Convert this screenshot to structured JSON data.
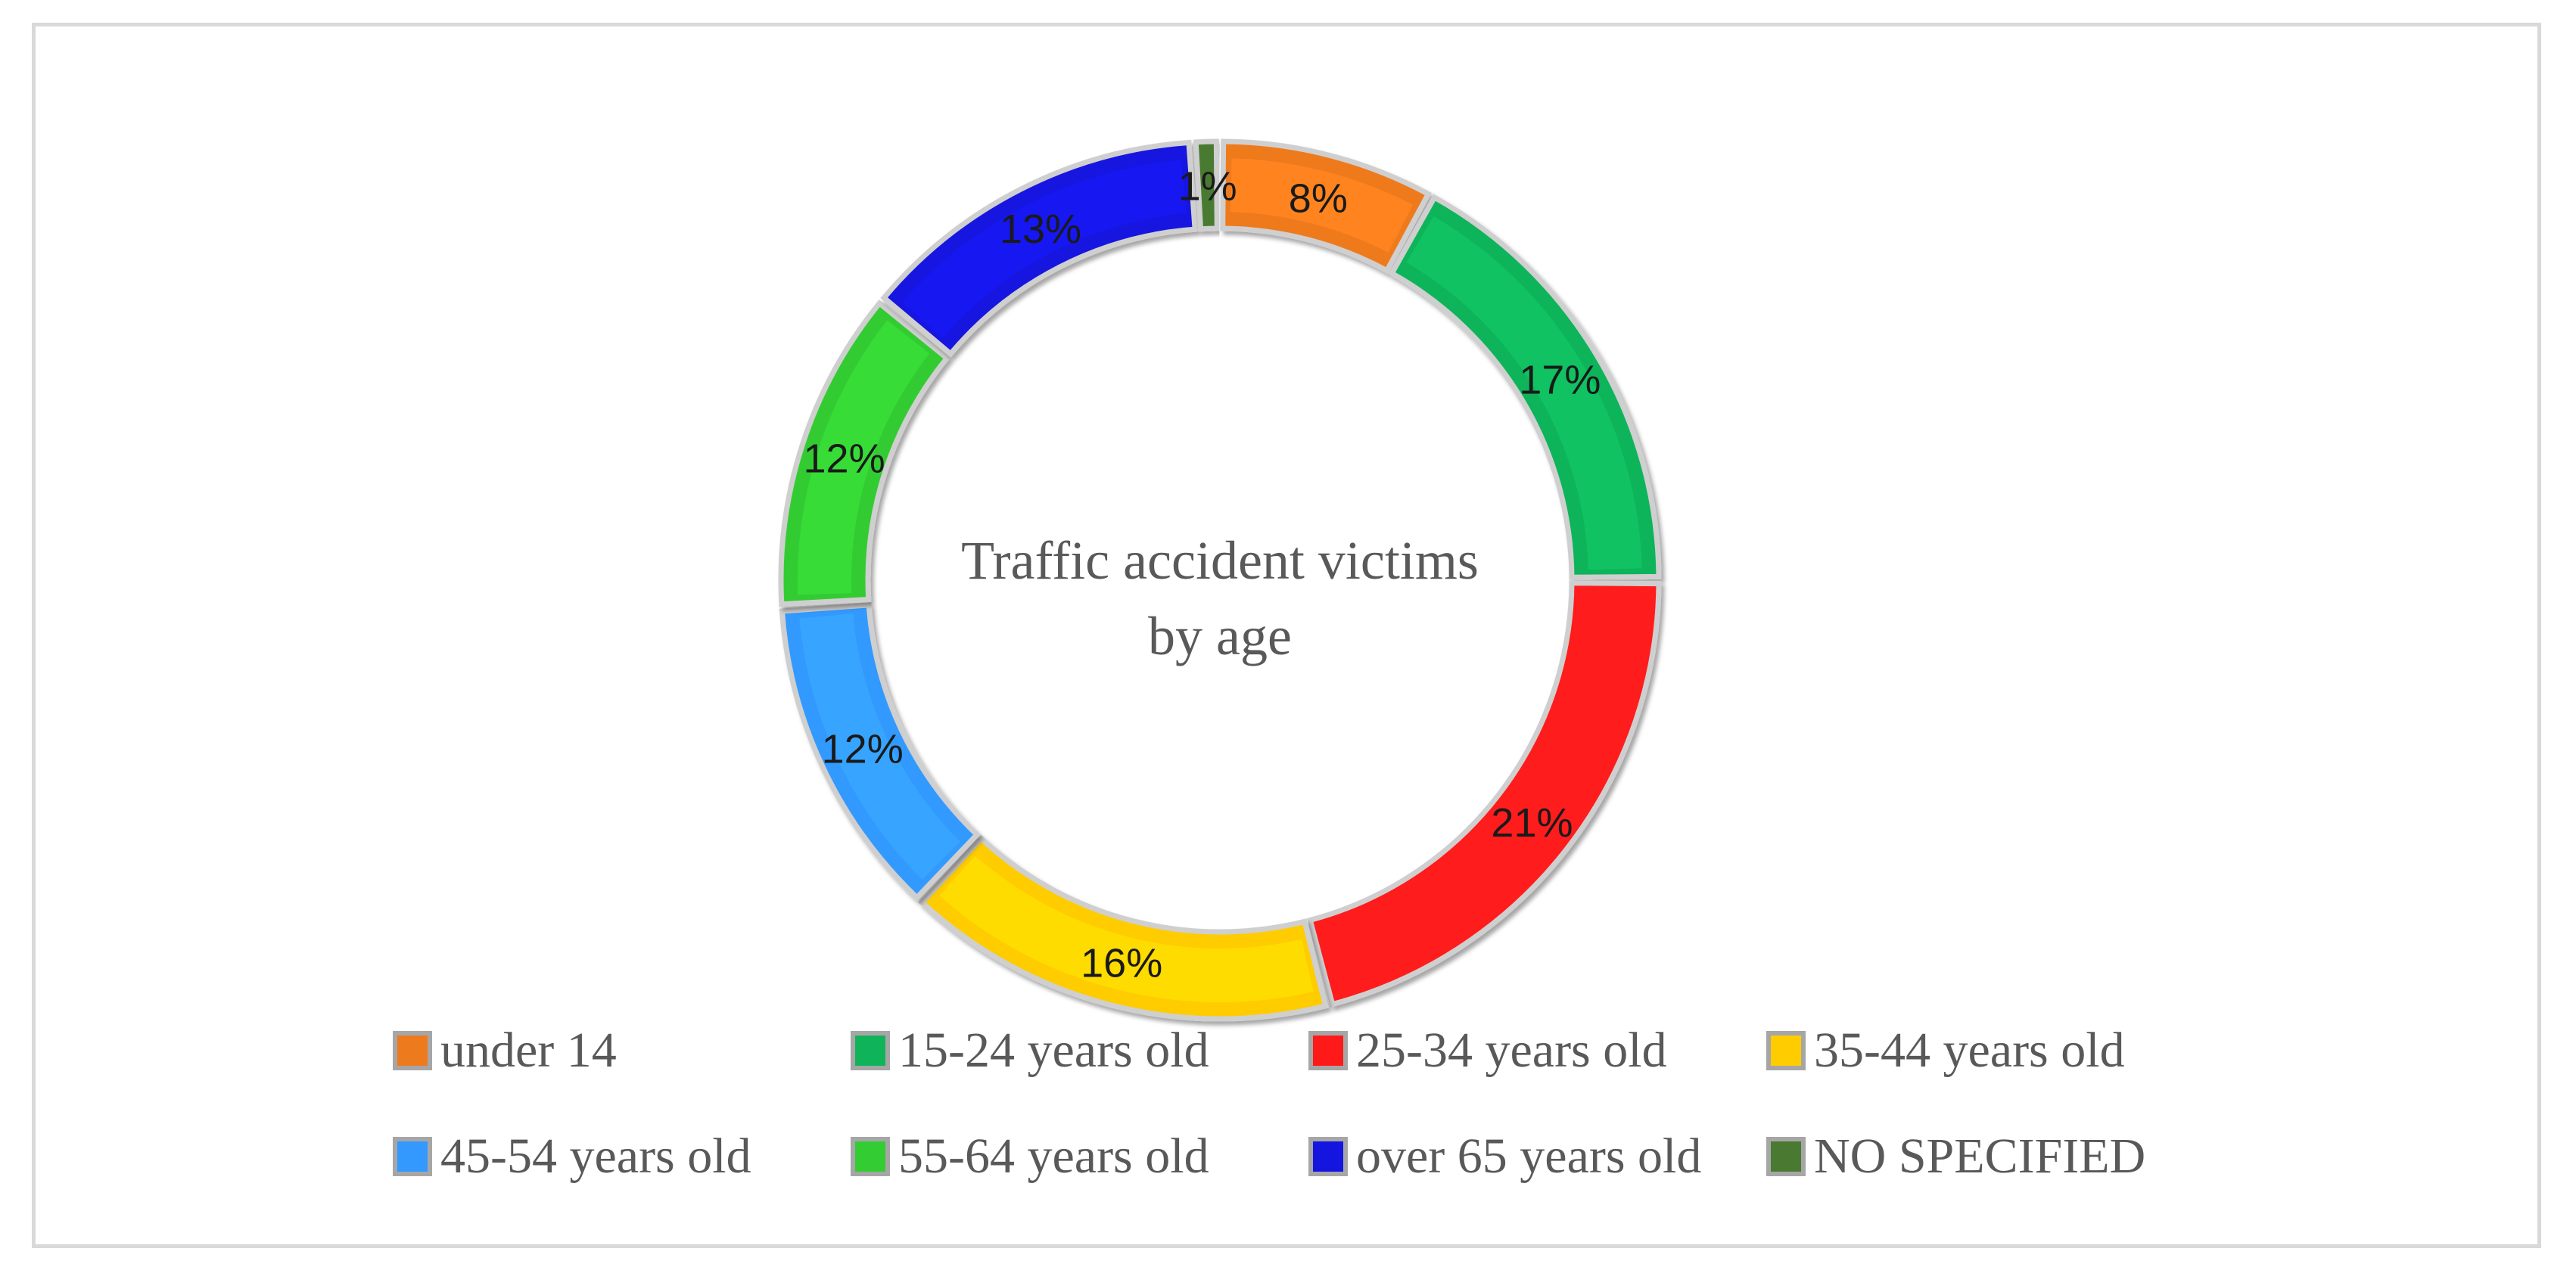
{
  "chart_data": {
    "type": "pie",
    "style": "doughnut",
    "title": "Traffic accident victims by age",
    "title_lines": [
      "Traffic accident victims",
      "by age"
    ],
    "legend_placement": "bottom",
    "categories": [
      "under 14",
      "15-24 years old",
      "25-34 years old",
      "35-44 years old",
      "45-54 years old",
      "55-64 years old",
      "over 65 years old",
      "NO SPECIFIED"
    ],
    "values": [
      8,
      17,
      21,
      16,
      12,
      12,
      13,
      1
    ],
    "labels": [
      "8%",
      "17%",
      "21%",
      "16%",
      "12%",
      "12%",
      "13%",
      "1%"
    ],
    "colors": [
      "#ee7a1e",
      "#0fb45a",
      "#ff1a1a",
      "#ffcc00",
      "#3399ff",
      "#33cc33",
      "#1515e0",
      "#4a7a32"
    ]
  }
}
